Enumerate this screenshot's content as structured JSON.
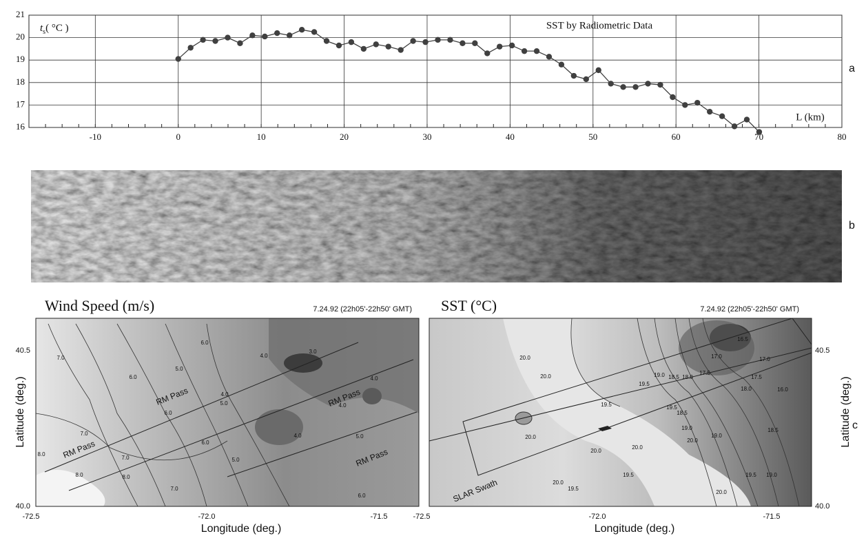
{
  "chart_data": {
    "type": "line",
    "title": "SST by Radiometric Data",
    "ylabel": [
      "t",
      "s",
      "( °C )"
    ],
    "xlabel": "L (km)",
    "color": "#404040",
    "x": [
      0,
      1.49,
      2.98,
      4.47,
      5.96,
      7.45,
      8.94,
      10.43,
      11.92,
      13.41,
      14.9,
      16.39,
      17.88,
      19.37,
      20.86,
      22.35,
      23.84,
      25.33,
      26.82,
      28.31,
      29.8,
      31.29,
      32.78,
      34.27,
      35.76,
      37.25,
      38.74,
      40.23,
      41.72,
      43.21,
      44.7,
      46.19,
      47.68,
      49.17,
      50.66,
      52.15,
      53.64,
      55.13,
      56.62,
      58.11,
      59.6,
      61.09,
      62.58,
      64.07,
      65.56,
      67.05,
      68.54,
      70.03
    ],
    "values": [
      19.05,
      19.55,
      19.9,
      19.85,
      20.0,
      19.75,
      20.1,
      20.05,
      20.2,
      20.1,
      20.35,
      20.25,
      19.85,
      19.65,
      19.8,
      19.5,
      19.7,
      19.6,
      19.45,
      19.85,
      19.8,
      19.9,
      19.9,
      19.75,
      19.75,
      19.3,
      19.6,
      19.65,
      19.4,
      19.4,
      19.15,
      18.8,
      18.3,
      18.15,
      18.55,
      17.95,
      17.8,
      17.8,
      17.95,
      17.9,
      17.35,
      17.0,
      17.1,
      16.7,
      16.5,
      16.05,
      16.35,
      15.8
    ],
    "xlim": [
      -18,
      80
    ],
    "xticks": [
      -10,
      0,
      10,
      20,
      30,
      40,
      50,
      60,
      70,
      80
    ],
    "ylim": [
      16,
      21
    ],
    "yticks": [
      16,
      17,
      18,
      19,
      20,
      21
    ],
    "grid": true
  },
  "panel_labels": [
    "a",
    "b",
    "c"
  ],
  "maps": [
    {
      "title": "Wind Speed (m/s)",
      "date": "7.24.92 (22h05'-22h50' GMT)",
      "xlabel": "Longitude (deg.)",
      "ylabel": "Latitude (deg.)",
      "xticks": [
        "-72.5",
        "-72.0",
        "-71.5"
      ],
      "yticks": [
        "40.5",
        "40.0"
      ],
      "annotations": [
        "RM Pass",
        "RM Pass",
        "RM Pass",
        "RM Pass"
      ],
      "contour_labels": [
        "7.0",
        "6.0",
        "5.0",
        "6.0",
        "4.0",
        "6.0",
        "5.0",
        "4.0",
        "3.0",
        "4.0",
        "4.0",
        "5.0",
        "6.0",
        "7.0",
        "8.0",
        "8.0",
        "8.0",
        "7.0",
        "7.0",
        "6.0",
        "5.0",
        "4.0"
      ]
    },
    {
      "title": "SST (°C)",
      "date": "7.24.92 (22h05'-22h50' GMT)",
      "xlabel": "Longitude (deg.)",
      "ylabel": "Latitude (deg.)",
      "xticks": [
        "-72.5",
        "-72.0",
        "-71.5"
      ],
      "yticks": [
        "40.5",
        "40.0"
      ],
      "annotations": [
        "SLAR Swath"
      ],
      "contour_labels": [
        "20.0",
        "20.0",
        "20.0",
        "20.0",
        "19.5",
        "20.0",
        "19.5",
        "20.0",
        "19.5",
        "19.0",
        "18.5",
        "18.0",
        "17.5",
        "17.0",
        "16.5",
        "17.0",
        "17.5",
        "18.0",
        "16.0",
        "18.5",
        "19.0",
        "18.5",
        "19.0",
        "20.0",
        "19.5",
        "19.0",
        "19.5",
        "20.0",
        "19.5"
      ]
    }
  ]
}
